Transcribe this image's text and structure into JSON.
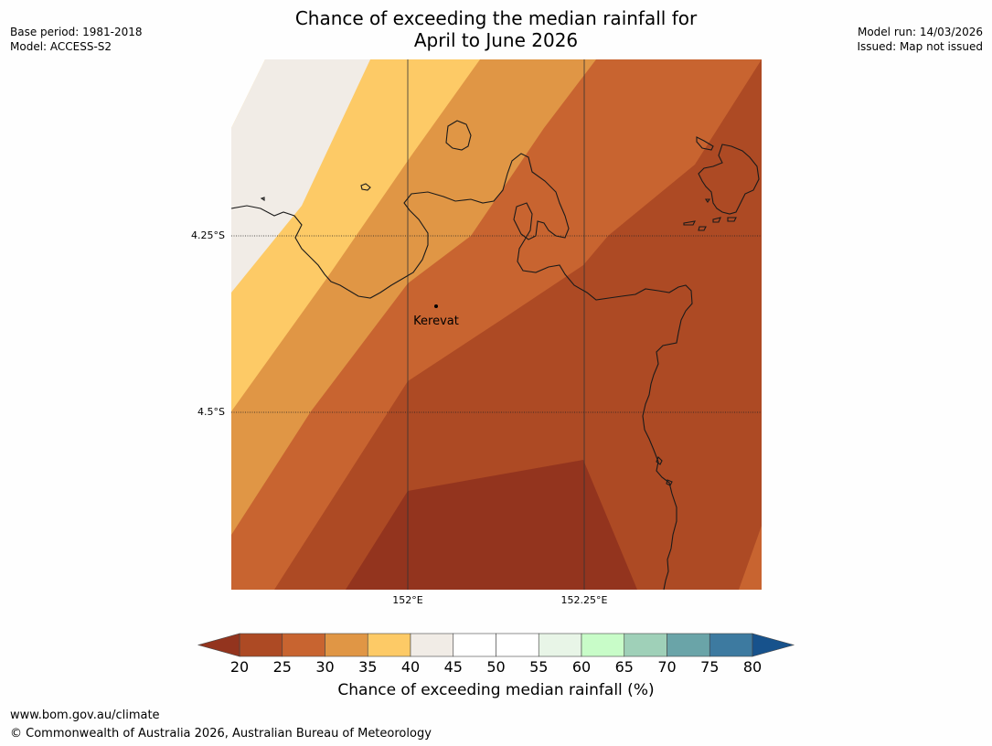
{
  "title": {
    "line1": "Chance of exceeding the median rainfall for",
    "line2": "April to June 2026"
  },
  "meta": {
    "base_period": "Base period: 1981-2018",
    "model": "Model: ACCESS-S2",
    "model_run": "Model run: 14/03/2026",
    "issued": "Issued: Map not issued"
  },
  "map": {
    "lat_labels": [
      "4.25°S",
      "4.5°S"
    ],
    "lon_labels": [
      "152°E",
      "152.25°E"
    ],
    "place": "Kerevat"
  },
  "colorbar": {
    "ticks": [
      "20",
      "25",
      "30",
      "35",
      "40",
      "45",
      "50",
      "55",
      "60",
      "65",
      "70",
      "75",
      "80"
    ],
    "label": "Chance of exceeding median rainfall (%)",
    "colors": {
      "below20": "#93341e",
      "c20_25": "#ad4a24",
      "c25_30": "#c86430",
      "c30_35": "#e09645",
      "c35_40": "#fdca66",
      "c40_45": "#f1ece6",
      "c45_50": "#ffffff",
      "c50_55": "#ffffff",
      "c55_60": "#e8f5e7",
      "c60_65": "#c8fcc8",
      "c65_70": "#9fd0b8",
      "c70_75": "#6aa4a8",
      "c75_80": "#3d7aa0",
      "above80": "#17528c"
    }
  },
  "footer": {
    "url": "www.bom.gov.au/climate",
    "copyright": "© Commonwealth of Australia 2026, Australian Bureau of Meteorology"
  }
}
